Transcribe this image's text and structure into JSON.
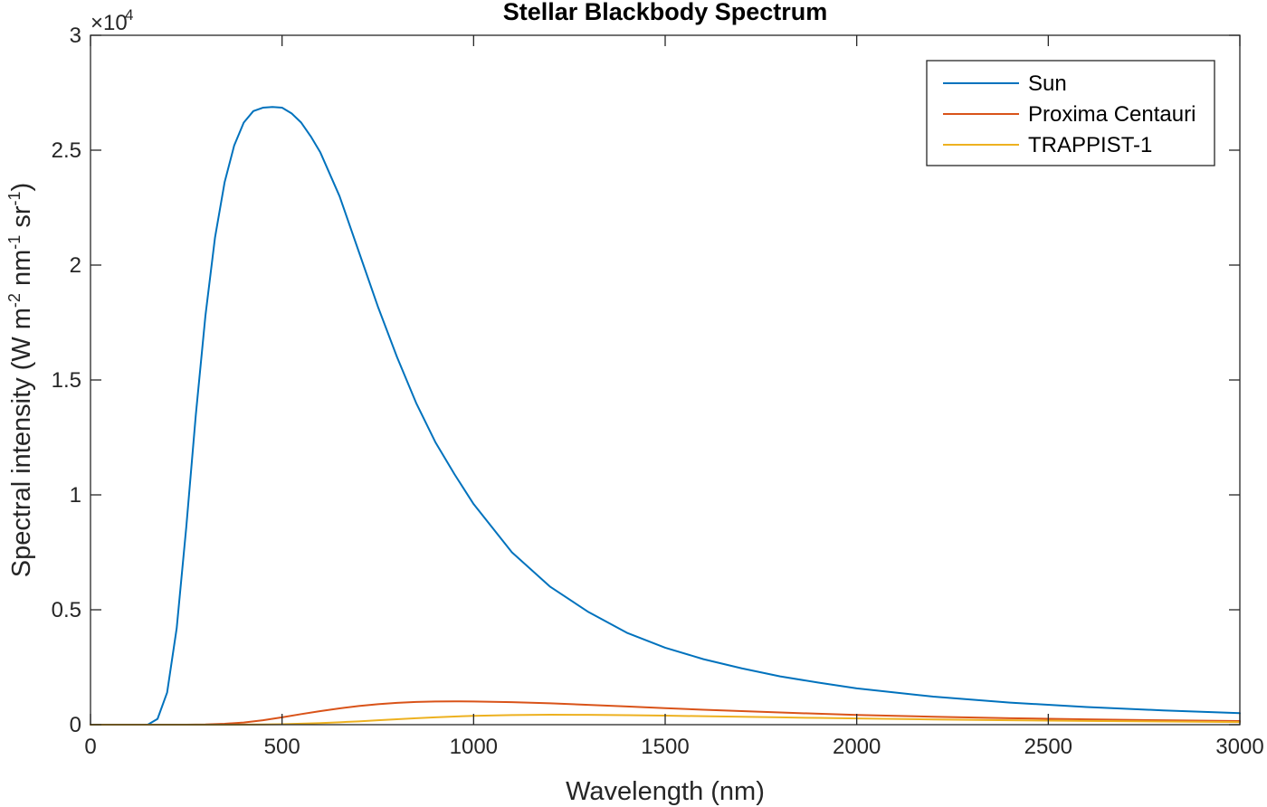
{
  "chart_data": {
    "type": "line",
    "title": "Stellar Blackbody Spectrum",
    "xlabel": "Wavelength (nm)",
    "ylabel": {
      "prefix": "Spectral intensity (W m",
      "sup1": "-2",
      "mid1": " nm",
      "sup2": "-1",
      "mid2": " sr",
      "sup3": "-1",
      "suffix": ")"
    },
    "y_exponent": {
      "base": "×10",
      "power": "4"
    },
    "xlim": [
      0,
      3000
    ],
    "ylim": [
      0,
      30000
    ],
    "xticks": [
      0,
      500,
      1000,
      1500,
      2000,
      2500,
      3000
    ],
    "xtick_labels": [
      "0",
      "500",
      "1000",
      "1500",
      "2000",
      "2500",
      "3000"
    ],
    "yticks": [
      0,
      5000,
      10000,
      15000,
      20000,
      25000,
      30000
    ],
    "ytick_labels": [
      "0",
      "0.5",
      "1",
      "1.5",
      "2",
      "2.5",
      "3"
    ],
    "legend_position": "top-right",
    "series": [
      {
        "name": "Sun",
        "color": "#0072BD",
        "x": [
          0,
          100,
          150,
          175,
          200,
          225,
          250,
          275,
          300,
          325,
          350,
          375,
          400,
          425,
          450,
          475,
          500,
          525,
          550,
          575,
          600,
          650,
          700,
          750,
          800,
          850,
          900,
          950,
          1000,
          1100,
          1200,
          1300,
          1400,
          1500,
          1600,
          1700,
          1800,
          1900,
          2000,
          2200,
          2400,
          2600,
          2800,
          3000
        ],
        "y": [
          0,
          0,
          5,
          250,
          1400,
          4200,
          8600,
          13500,
          17800,
          21200,
          23600,
          25200,
          26200,
          26700,
          26850,
          26880,
          26850,
          26600,
          26200,
          25600,
          24900,
          23000,
          20600,
          18200,
          16000,
          14000,
          12300,
          10900,
          9600,
          7500,
          6000,
          4900,
          4000,
          3350,
          2850,
          2450,
          2100,
          1830,
          1580,
          1220,
          960,
          770,
          620,
          500
        ]
      },
      {
        "name": "Proxima Centauri",
        "color": "#D95319",
        "x": [
          0,
          200,
          250,
          300,
          350,
          400,
          450,
          500,
          550,
          600,
          650,
          700,
          750,
          800,
          850,
          900,
          950,
          1000,
          1100,
          1200,
          1300,
          1400,
          1500,
          1600,
          1700,
          1800,
          1900,
          2000,
          2200,
          2400,
          2600,
          2800,
          3000
        ],
        "y": [
          0,
          0,
          2,
          12,
          40,
          95,
          190,
          320,
          460,
          590,
          710,
          810,
          890,
          950,
          990,
          1010,
          1015,
          1010,
          980,
          930,
          860,
          790,
          720,
          650,
          590,
          530,
          475,
          425,
          345,
          280,
          230,
          190,
          155
        ]
      },
      {
        "name": "TRAPPIST-1",
        "color": "#EDB120",
        "x": [
          0,
          300,
          350,
          400,
          450,
          500,
          550,
          600,
          650,
          700,
          750,
          800,
          850,
          900,
          950,
          1000,
          1100,
          1200,
          1300,
          1400,
          1500,
          1600,
          1700,
          1800,
          1900,
          2000,
          2200,
          2400,
          2600,
          2800,
          3000
        ],
        "y": [
          0,
          0,
          1,
          4,
          10,
          22,
          42,
          70,
          105,
          145,
          190,
          235,
          280,
          320,
          355,
          385,
          420,
          432,
          428,
          412,
          392,
          368,
          343,
          318,
          293,
          270,
          228,
          192,
          162,
          137,
          115
        ]
      }
    ]
  }
}
